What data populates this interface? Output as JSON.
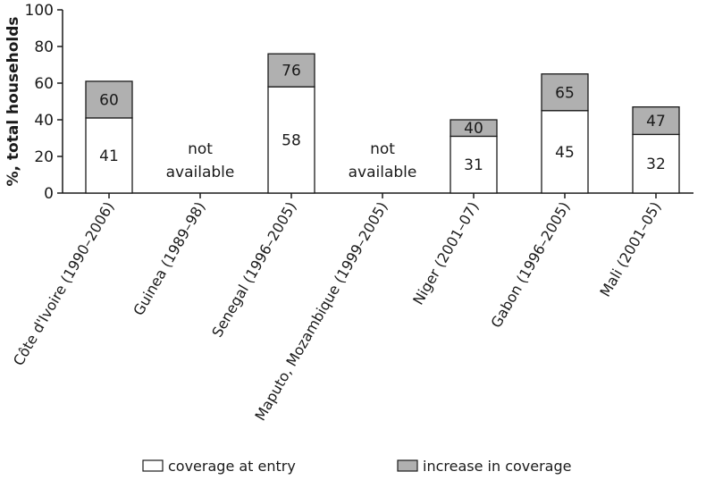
{
  "chart_data": {
    "type": "bar",
    "stacked": true,
    "ylabel": "%, total households",
    "ylim": [
      0,
      100
    ],
    "yticks": [
      0,
      20,
      40,
      60,
      80,
      100
    ],
    "grid": false,
    "legend_position": "bottom",
    "categories": [
      "Côte d'Ivoire (1990–2006)",
      "Guinea (1989–98)",
      "Senegal (1996–2005)",
      "Maputo, Mozambique (1999–2005)",
      "Niger (2001–07)",
      "Gabon (1996–2005)",
      "Mali (2001–05)"
    ],
    "series": [
      {
        "name": "coverage at entry",
        "color": "#ffffff",
        "values": [
          41,
          null,
          58,
          null,
          31,
          45,
          32
        ]
      },
      {
        "name": "increase in coverage",
        "color": "#b0b0b0",
        "values": [
          20,
          null,
          18,
          null,
          9,
          20,
          15
        ]
      }
    ],
    "total_labels": [
      60,
      null,
      76,
      null,
      40,
      65,
      47
    ],
    "entry_labels": [
      41,
      null,
      58,
      null,
      31,
      45,
      32
    ],
    "na_text": [
      "not",
      "available"
    ]
  }
}
